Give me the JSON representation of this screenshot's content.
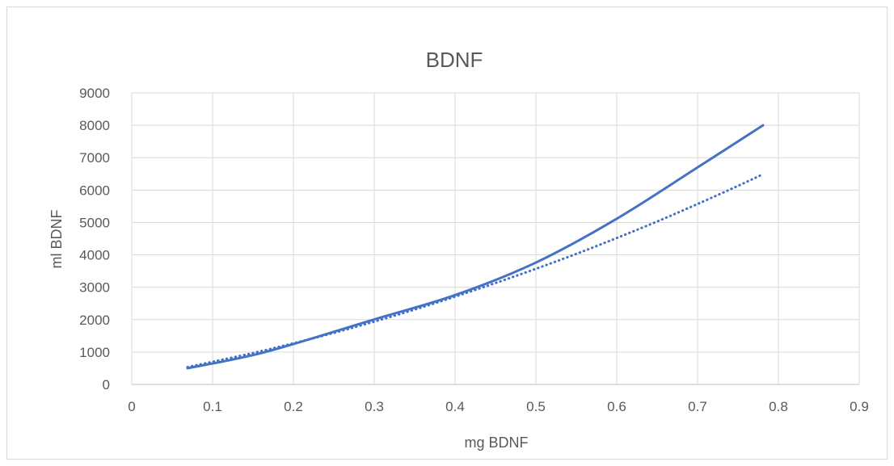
{
  "chart_data": {
    "type": "line",
    "title": "BDNF",
    "xlabel": "mg BDNF",
    "ylabel": "ml BDNF",
    "xlim": [
      0,
      0.9
    ],
    "ylim": [
      0,
      9000
    ],
    "x_ticks": [
      "0",
      "0.1",
      "0.2",
      "0.3",
      "0.4",
      "0.5",
      "0.6",
      "0.7",
      "0.8",
      "0.9"
    ],
    "y_ticks": [
      "0",
      "1000",
      "2000",
      "3000",
      "4000",
      "5000",
      "6000",
      "7000",
      "8000",
      "9000"
    ],
    "grid": true,
    "legend": "none",
    "series": [
      {
        "style": "solid",
        "color": "#4472c4",
        "x": [
          0.069,
          0.165,
          0.299,
          0.399,
          0.499,
          0.599,
          0.7,
          0.781
        ],
        "y": [
          500,
          1000,
          2000,
          2750,
          3750,
          5100,
          6700,
          8000
        ]
      },
      {
        "style": "dotted",
        "color": "#4472c4",
        "x": [
          0.069,
          0.1,
          0.15,
          0.2,
          0.25,
          0.3,
          0.35,
          0.4,
          0.45,
          0.5,
          0.55,
          0.6,
          0.65,
          0.7,
          0.75,
          0.781
        ],
        "y": [
          536,
          700,
          970,
          1270,
          1590,
          1940,
          2310,
          2710,
          3130,
          3570,
          4030,
          4520,
          5030,
          5570,
          6130,
          6490
        ]
      }
    ]
  }
}
